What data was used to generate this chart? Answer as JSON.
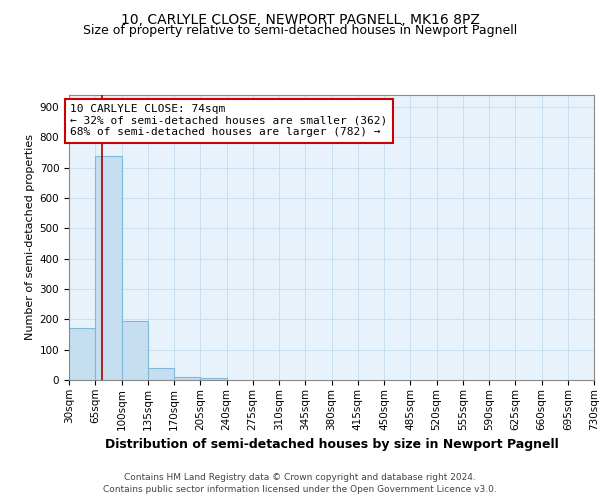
{
  "title": "10, CARLYLE CLOSE, NEWPORT PAGNELL, MK16 8PZ",
  "subtitle": "Size of property relative to semi-detached houses in Newport Pagnell",
  "xlabel": "Distribution of semi-detached houses by size in Newport Pagnell",
  "ylabel": "Number of semi-detached properties",
  "bin_labels": [
    "30sqm",
    "65sqm",
    "100sqm",
    "135sqm",
    "170sqm",
    "205sqm",
    "240sqm",
    "275sqm",
    "310sqm",
    "345sqm",
    "380sqm",
    "415sqm",
    "450sqm",
    "485sqm",
    "520sqm",
    "555sqm",
    "590sqm",
    "625sqm",
    "660sqm",
    "695sqm",
    "730sqm"
  ],
  "bin_edges": [
    30,
    65,
    100,
    135,
    170,
    205,
    240,
    275,
    310,
    345,
    380,
    415,
    450,
    485,
    520,
    555,
    590,
    625,
    660,
    695,
    730
  ],
  "bar_values": [
    170,
    740,
    195,
    40,
    10,
    5,
    0,
    0,
    0,
    0,
    0,
    0,
    0,
    0,
    0,
    0,
    0,
    0,
    0,
    0
  ],
  "bar_color": "#c6dff0",
  "bar_edge_color": "#7fb8d8",
  "grid_color": "#c8dff0",
  "background_color": "#e8f2fb",
  "property_line_x": 74,
  "property_line_color": "#aa0000",
  "ylim": [
    0,
    940
  ],
  "yticks": [
    0,
    100,
    200,
    300,
    400,
    500,
    600,
    700,
    800,
    900
  ],
  "annotation_line1": "10 CARLYLE CLOSE: 74sqm",
  "annotation_line2": "← 32% of semi-detached houses are smaller (362)",
  "annotation_line3": "68% of semi-detached houses are larger (782) →",
  "annotation_box_color": "#ffffff",
  "annotation_box_edge": "#cc0000",
  "footnote1": "Contains HM Land Registry data © Crown copyright and database right 2024.",
  "footnote2": "Contains public sector information licensed under the Open Government Licence v3.0.",
  "title_fontsize": 10,
  "subtitle_fontsize": 9,
  "xlabel_fontsize": 9,
  "ylabel_fontsize": 8,
  "tick_fontsize": 7.5,
  "annotation_fontsize": 8,
  "footnote_fontsize": 6.5
}
